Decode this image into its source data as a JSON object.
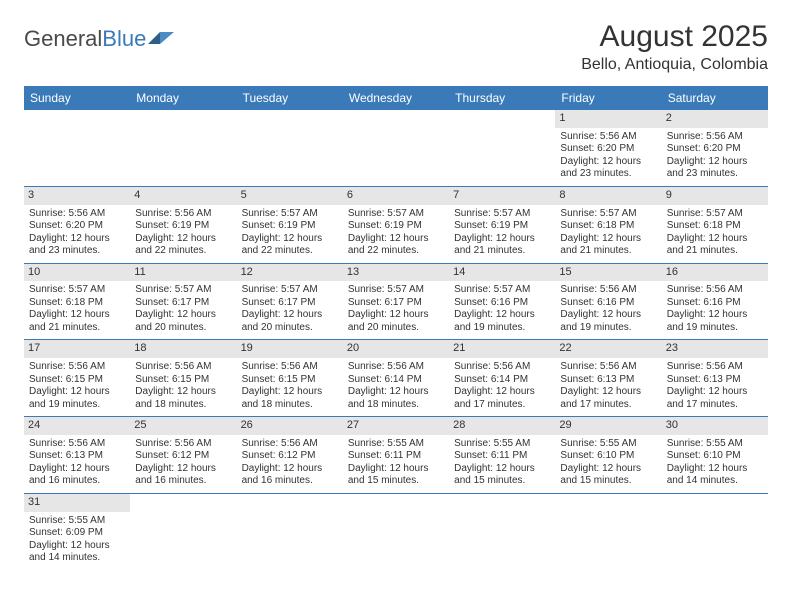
{
  "logo": {
    "part1": "General",
    "part2": "Blue"
  },
  "title": "August 2025",
  "location": "Bello, Antioquia, Colombia",
  "colors": {
    "header_bg": "#3a7ab8",
    "header_text": "#ffffff",
    "daynum_bg": "#e6e6e6",
    "row_divider": "#3a7ab8",
    "body_text": "#333333"
  },
  "weekdays": [
    "Sunday",
    "Monday",
    "Tuesday",
    "Wednesday",
    "Thursday",
    "Friday",
    "Saturday"
  ],
  "weeks": [
    [
      null,
      null,
      null,
      null,
      null,
      {
        "n": "1",
        "sr": "Sunrise: 5:56 AM",
        "ss": "Sunset: 6:20 PM",
        "d1": "Daylight: 12 hours",
        "d2": "and 23 minutes."
      },
      {
        "n": "2",
        "sr": "Sunrise: 5:56 AM",
        "ss": "Sunset: 6:20 PM",
        "d1": "Daylight: 12 hours",
        "d2": "and 23 minutes."
      }
    ],
    [
      {
        "n": "3",
        "sr": "Sunrise: 5:56 AM",
        "ss": "Sunset: 6:20 PM",
        "d1": "Daylight: 12 hours",
        "d2": "and 23 minutes."
      },
      {
        "n": "4",
        "sr": "Sunrise: 5:56 AM",
        "ss": "Sunset: 6:19 PM",
        "d1": "Daylight: 12 hours",
        "d2": "and 22 minutes."
      },
      {
        "n": "5",
        "sr": "Sunrise: 5:57 AM",
        "ss": "Sunset: 6:19 PM",
        "d1": "Daylight: 12 hours",
        "d2": "and 22 minutes."
      },
      {
        "n": "6",
        "sr": "Sunrise: 5:57 AM",
        "ss": "Sunset: 6:19 PM",
        "d1": "Daylight: 12 hours",
        "d2": "and 22 minutes."
      },
      {
        "n": "7",
        "sr": "Sunrise: 5:57 AM",
        "ss": "Sunset: 6:19 PM",
        "d1": "Daylight: 12 hours",
        "d2": "and 21 minutes."
      },
      {
        "n": "8",
        "sr": "Sunrise: 5:57 AM",
        "ss": "Sunset: 6:18 PM",
        "d1": "Daylight: 12 hours",
        "d2": "and 21 minutes."
      },
      {
        "n": "9",
        "sr": "Sunrise: 5:57 AM",
        "ss": "Sunset: 6:18 PM",
        "d1": "Daylight: 12 hours",
        "d2": "and 21 minutes."
      }
    ],
    [
      {
        "n": "10",
        "sr": "Sunrise: 5:57 AM",
        "ss": "Sunset: 6:18 PM",
        "d1": "Daylight: 12 hours",
        "d2": "and 21 minutes."
      },
      {
        "n": "11",
        "sr": "Sunrise: 5:57 AM",
        "ss": "Sunset: 6:17 PM",
        "d1": "Daylight: 12 hours",
        "d2": "and 20 minutes."
      },
      {
        "n": "12",
        "sr": "Sunrise: 5:57 AM",
        "ss": "Sunset: 6:17 PM",
        "d1": "Daylight: 12 hours",
        "d2": "and 20 minutes."
      },
      {
        "n": "13",
        "sr": "Sunrise: 5:57 AM",
        "ss": "Sunset: 6:17 PM",
        "d1": "Daylight: 12 hours",
        "d2": "and 20 minutes."
      },
      {
        "n": "14",
        "sr": "Sunrise: 5:57 AM",
        "ss": "Sunset: 6:16 PM",
        "d1": "Daylight: 12 hours",
        "d2": "and 19 minutes."
      },
      {
        "n": "15",
        "sr": "Sunrise: 5:56 AM",
        "ss": "Sunset: 6:16 PM",
        "d1": "Daylight: 12 hours",
        "d2": "and 19 minutes."
      },
      {
        "n": "16",
        "sr": "Sunrise: 5:56 AM",
        "ss": "Sunset: 6:16 PM",
        "d1": "Daylight: 12 hours",
        "d2": "and 19 minutes."
      }
    ],
    [
      {
        "n": "17",
        "sr": "Sunrise: 5:56 AM",
        "ss": "Sunset: 6:15 PM",
        "d1": "Daylight: 12 hours",
        "d2": "and 19 minutes."
      },
      {
        "n": "18",
        "sr": "Sunrise: 5:56 AM",
        "ss": "Sunset: 6:15 PM",
        "d1": "Daylight: 12 hours",
        "d2": "and 18 minutes."
      },
      {
        "n": "19",
        "sr": "Sunrise: 5:56 AM",
        "ss": "Sunset: 6:15 PM",
        "d1": "Daylight: 12 hours",
        "d2": "and 18 minutes."
      },
      {
        "n": "20",
        "sr": "Sunrise: 5:56 AM",
        "ss": "Sunset: 6:14 PM",
        "d1": "Daylight: 12 hours",
        "d2": "and 18 minutes."
      },
      {
        "n": "21",
        "sr": "Sunrise: 5:56 AM",
        "ss": "Sunset: 6:14 PM",
        "d1": "Daylight: 12 hours",
        "d2": "and 17 minutes."
      },
      {
        "n": "22",
        "sr": "Sunrise: 5:56 AM",
        "ss": "Sunset: 6:13 PM",
        "d1": "Daylight: 12 hours",
        "d2": "and 17 minutes."
      },
      {
        "n": "23",
        "sr": "Sunrise: 5:56 AM",
        "ss": "Sunset: 6:13 PM",
        "d1": "Daylight: 12 hours",
        "d2": "and 17 minutes."
      }
    ],
    [
      {
        "n": "24",
        "sr": "Sunrise: 5:56 AM",
        "ss": "Sunset: 6:13 PM",
        "d1": "Daylight: 12 hours",
        "d2": "and 16 minutes."
      },
      {
        "n": "25",
        "sr": "Sunrise: 5:56 AM",
        "ss": "Sunset: 6:12 PM",
        "d1": "Daylight: 12 hours",
        "d2": "and 16 minutes."
      },
      {
        "n": "26",
        "sr": "Sunrise: 5:56 AM",
        "ss": "Sunset: 6:12 PM",
        "d1": "Daylight: 12 hours",
        "d2": "and 16 minutes."
      },
      {
        "n": "27",
        "sr": "Sunrise: 5:55 AM",
        "ss": "Sunset: 6:11 PM",
        "d1": "Daylight: 12 hours",
        "d2": "and 15 minutes."
      },
      {
        "n": "28",
        "sr": "Sunrise: 5:55 AM",
        "ss": "Sunset: 6:11 PM",
        "d1": "Daylight: 12 hours",
        "d2": "and 15 minutes."
      },
      {
        "n": "29",
        "sr": "Sunrise: 5:55 AM",
        "ss": "Sunset: 6:10 PM",
        "d1": "Daylight: 12 hours",
        "d2": "and 15 minutes."
      },
      {
        "n": "30",
        "sr": "Sunrise: 5:55 AM",
        "ss": "Sunset: 6:10 PM",
        "d1": "Daylight: 12 hours",
        "d2": "and 14 minutes."
      }
    ],
    [
      {
        "n": "31",
        "sr": "Sunrise: 5:55 AM",
        "ss": "Sunset: 6:09 PM",
        "d1": "Daylight: 12 hours",
        "d2": "and 14 minutes."
      },
      null,
      null,
      null,
      null,
      null,
      null
    ]
  ]
}
